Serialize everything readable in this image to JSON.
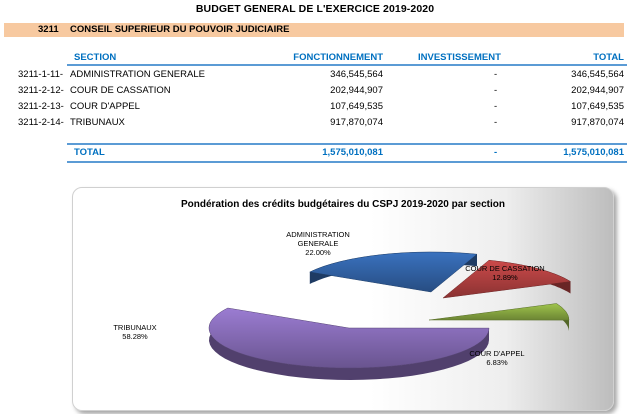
{
  "page_title": "BUDGET GENERAL DE L'EXERCICE 2019-2020",
  "section_band": {
    "code": "3211",
    "label": "CONSEIL SUPERIEUR DU POUVOIR JUDICIAIRE"
  },
  "table": {
    "headers": {
      "section": "SECTION",
      "fonctionnement": "FONCTIONNEMENT",
      "investissement": "INVESTISSEMENT",
      "total": "TOTAL"
    },
    "rows": [
      {
        "code": "3211-1-11-",
        "label": "ADMINISTRATION GENERALE",
        "fonctionnement": "346,545,564",
        "investissement": "-",
        "total": "346,545,564"
      },
      {
        "code": "3211-2-12-",
        "label": "COUR DE CASSATION",
        "fonctionnement": "202,944,907",
        "investissement": "-",
        "total": "202,944,907"
      },
      {
        "code": "3211-2-13-",
        "label": "COUR D'APPEL",
        "fonctionnement": "107,649,535",
        "investissement": "-",
        "total": "107,649,535"
      },
      {
        "code": "3211-2-14-",
        "label": "TRIBUNAUX",
        "fonctionnement": "917,870,074",
        "investissement": "-",
        "total": "917,870,074"
      }
    ],
    "total_row": {
      "label": "TOTAL",
      "fonctionnement": "1,575,010,081",
      "investissement": "-",
      "total": "1,575,010,081"
    }
  },
  "chart_data": {
    "type": "pie",
    "title": "Pondération des  crédits budgétaires  du CSPJ 2019-2020 par section",
    "categories": [
      "ADMINISTRATION GENERALE",
      "COUR DE CASSATION",
      "COUR D'APPEL",
      "TRIBUNAUX"
    ],
    "values": [
      22.0,
      12.89,
      6.83,
      58.28
    ],
    "value_labels": [
      "22.00%",
      "12.89%",
      "6.83%",
      "58.28%"
    ],
    "colors": [
      "#2e5b99",
      "#a23b3b",
      "#7f9d3d",
      "#7c63a8"
    ],
    "style": "3d-exploded",
    "legend": "none"
  }
}
